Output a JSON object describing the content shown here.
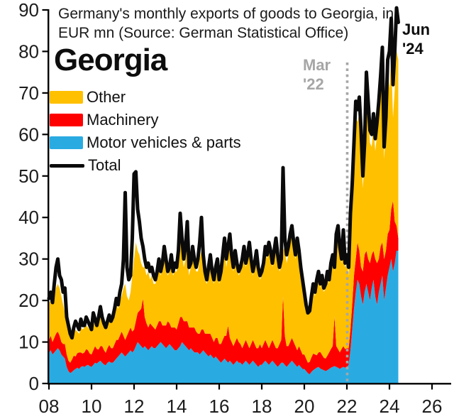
{
  "header": {
    "title_line1": "Germany's monthly exports of goods to Georgia, in",
    "title_line2": "EUR mn (Source: German Statistical Office)",
    "chart_name": "Georgia"
  },
  "legend": {
    "items": [
      {
        "label": "Other",
        "color": "#FFC000",
        "type": "box"
      },
      {
        "label": "Machinery",
        "color": "#FF0000",
        "type": "box"
      },
      {
        "label": "Motor vehicles & parts",
        "color": "#29ABE2",
        "type": "box"
      },
      {
        "label": "Total",
        "color": "#0A0A0A",
        "type": "line"
      }
    ]
  },
  "annotations": {
    "mar22": {
      "line1": "Mar",
      "line2": "'22",
      "color": "#A6A6A6"
    },
    "jun24": {
      "line1": "Jun",
      "line2": "'24",
      "color": "#0D0D0D"
    }
  },
  "chart_data": {
    "type": "area",
    "stacked": true,
    "title": "Georgia - Germany's monthly exports of goods to Georgia, EUR mn",
    "x_unit": "month",
    "x_start": "2008-01",
    "x_end": "2024-06",
    "x_tick_years": [
      2008,
      2010,
      2012,
      2014,
      2016,
      2018,
      2020,
      2022,
      2024,
      2026
    ],
    "x_tick_labels": [
      "08",
      "10",
      "12",
      "14",
      "16",
      "18",
      "20",
      "22",
      "24",
      "26"
    ],
    "y_ticks": [
      0,
      10,
      20,
      30,
      40,
      50,
      60,
      70,
      80,
      90
    ],
    "ylim": [
      0,
      90
    ],
    "grid": false,
    "legend_position": "top-left",
    "event_line": {
      "label": "Mar '22",
      "x": "2022-03",
      "style": "dotted",
      "color": "#A6A6A6"
    },
    "end_label": {
      "label": "Jun '24",
      "x": "2024-06"
    },
    "series": [
      {
        "role": "motor",
        "name": "Motor vehicles & parts",
        "color": "#29ABE2",
        "kind": "stacked-area",
        "values": [
          7.5,
          8,
          7,
          7.5,
          8,
          8.5,
          8,
          7,
          6.5,
          6,
          4,
          3,
          2.5,
          2.8,
          3.2,
          3.5,
          3.8,
          3.5,
          4,
          4.2,
          4,
          4.3,
          4.5,
          4.2,
          4,
          4.5,
          5,
          4.8,
          5.2,
          5.5,
          5,
          4.6,
          4.4,
          5,
          5.3,
          5,
          5,
          5.5,
          6,
          6.5,
          7,
          7.5,
          7,
          6.5,
          7,
          7.5,
          8,
          7.5,
          8,
          9,
          10,
          9.5,
          9,
          8.5,
          9,
          8.5,
          8,
          8.5,
          9,
          8.5,
          8.5,
          9,
          9.5,
          10,
          9.5,
          9,
          8.5,
          9,
          9.5,
          9,
          8.5,
          8,
          8,
          8.5,
          9,
          10,
          9.5,
          9,
          8.5,
          8,
          8.5,
          8,
          7.5,
          7.5,
          7.5,
          7,
          7.5,
          8,
          7.5,
          7,
          6.5,
          7,
          6.5,
          6,
          6.5,
          6,
          5.5,
          5,
          5.5,
          6,
          5.5,
          5,
          5.5,
          5,
          4.5,
          5,
          5.5,
          5,
          5,
          4.5,
          5,
          5.5,
          5,
          4.5,
          5,
          5.5,
          5,
          4.5,
          4,
          4.5,
          4.5,
          5,
          5.5,
          5,
          4.5,
          5,
          5.5,
          5,
          4.5,
          4,
          4.5,
          5,
          5,
          4.5,
          4,
          4.5,
          5,
          5.5,
          5,
          4.5,
          4,
          4.5,
          4,
          3.5,
          3.5,
          3,
          2.5,
          2.2,
          2.8,
          3.2,
          3.5,
          3.8,
          4,
          3.6,
          3.4,
          3.2,
          3,
          3.2,
          3.5,
          3.8,
          4,
          4.2,
          4,
          3.8,
          3.5,
          3.8,
          4,
          3.8,
          4,
          4.5,
          8,
          13,
          18,
          22,
          25,
          24,
          21,
          19,
          22,
          24,
          22,
          20,
          23,
          25,
          21,
          19,
          22,
          24,
          26,
          20,
          23,
          26,
          28,
          30,
          27,
          29,
          32,
          32
        ]
      },
      {
        "role": "machinery",
        "name": "Machinery",
        "color": "#FF0000",
        "kind": "stacked-area",
        "values": [
          3,
          3.5,
          3,
          3.5,
          4,
          4,
          3.5,
          3,
          3,
          3.5,
          3,
          2.5,
          2.5,
          3,
          3.5,
          3,
          3.5,
          4,
          3.5,
          3,
          3.5,
          4,
          3.5,
          3,
          3,
          3.5,
          4,
          3.5,
          3,
          3.5,
          4,
          3.5,
          3,
          3.5,
          4,
          3.5,
          3.5,
          4,
          4.5,
          4,
          4.5,
          5,
          4.5,
          4,
          4.5,
          5,
          5.5,
          5,
          5,
          6,
          7,
          8,
          9,
          12,
          7,
          6,
          5.5,
          6,
          5,
          5,
          4.5,
          5,
          5.5,
          5,
          4.5,
          5,
          5.5,
          6,
          5,
          4.5,
          5,
          5.5,
          5,
          6,
          7,
          6,
          5.5,
          6,
          6.5,
          5.5,
          5,
          5.5,
          6,
          5,
          4.5,
          5,
          5.5,
          5,
          4.5,
          5,
          5.5,
          5,
          4.5,
          4,
          4.5,
          5,
          4,
          4.5,
          5,
          5.5,
          6,
          9,
          5.5,
          5,
          4.5,
          5,
          5.5,
          5,
          4.5,
          4,
          4.5,
          5,
          4.5,
          4,
          4.5,
          5,
          4.5,
          4,
          4.5,
          5,
          4,
          4.5,
          5,
          4.5,
          4,
          4.5,
          5,
          4.5,
          4,
          4.5,
          5,
          5.5,
          16,
          7,
          5,
          4.5,
          5,
          5.5,
          5,
          4.5,
          4,
          4.5,
          4,
          3.5,
          3.5,
          3,
          2.5,
          3,
          3.5,
          4,
          3.5,
          3,
          3.5,
          4,
          3.5,
          3,
          3,
          3.5,
          4,
          4.5,
          5,
          12,
          5,
          4.5,
          4,
          4.5,
          5,
          4.5,
          4.5,
          4,
          5,
          6,
          8,
          8,
          9,
          8,
          7,
          8,
          9,
          8,
          8,
          9,
          8,
          7,
          9,
          10,
          8,
          9,
          8,
          10,
          9,
          10,
          9,
          12,
          17,
          10,
          6,
          3
        ]
      },
      {
        "role": "other",
        "name": "Other",
        "color": "#FFC000",
        "kind": "stacked-area",
        "values": [
          9,
          8.5,
          9,
          10,
          11,
          11.5,
          11.5,
          11,
          9.5,
          7.5,
          7,
          7.5,
          6,
          4.7,
          5.3,
          6.5,
          5.2,
          4.5,
          6,
          5.8,
          6,
          5.7,
          5.5,
          5.8,
          5.5,
          6,
          6,
          5.7,
          7.3,
          8,
          6.5,
          5.9,
          5.6,
          6,
          6.2,
          6.5,
          7,
          7.5,
          8.5,
          7.5,
          8.5,
          8.5,
          11.5,
          13.5,
          9.5,
          7.5,
          8.5,
          13.5,
          17,
          19,
          15,
          13.5,
          11,
          7.5,
          12,
          11.5,
          13.5,
          10.5,
          12,
          10.5,
          11,
          12,
          13,
          11,
          14,
          16,
          14,
          11,
          12.5,
          15.5,
          12.5,
          13.5,
          14,
          15.5,
          19,
          16,
          13,
          15,
          18,
          12.5,
          14.5,
          17.5,
          15.5,
          14.5,
          15,
          18,
          19,
          15,
          13,
          12,
          14,
          16,
          15,
          14,
          15,
          17,
          14.5,
          16.5,
          18.5,
          21.5,
          16.5,
          17,
          23,
          19,
          18,
          20,
          17,
          16,
          17.5,
          20.5,
          22.5,
          17.5,
          20.5,
          24.5,
          19.5,
          15.5,
          18.5,
          22.5,
          18.5,
          15.5,
          17.5,
          18.5,
          21.5,
          20.5,
          24.5,
          21.5,
          17.5,
          21.5,
          25.5,
          21.5,
          17.5,
          17.5,
          11,
          21.5,
          20,
          22,
          24,
          25,
          22,
          21,
          25,
          21,
          19,
          17,
          13,
          12,
          11.5,
          11.8,
          13.7,
          15.8,
          14,
          17.2,
          18.5,
          15.4,
          18.1,
          15.8,
          17,
          19.3,
          16.5,
          19.7,
          21,
          10.8,
          25,
          27.7,
          23.5,
          20.7,
          26,
          19.7,
          20.5,
          17.5,
          25,
          26,
          29,
          34,
          29,
          33,
          29,
          20,
          24,
          39,
          35,
          29,
          26,
          30,
          26,
          31,
          35,
          38,
          44,
          24,
          29,
          39,
          34,
          37,
          20,
          32,
          42,
          43
        ]
      },
      {
        "role": "total",
        "name": "Total",
        "color": "#0A0A0A",
        "kind": "line",
        "values": [
          20.5,
          22,
          19.5,
          24,
          28,
          30,
          26,
          25,
          22,
          23,
          16,
          14,
          12,
          11,
          13.5,
          15,
          14,
          13,
          15.5,
          14,
          14,
          16,
          15,
          14,
          13,
          17,
          15.5,
          14,
          16,
          18.5,
          16,
          14.5,
          13.5,
          15,
          16.5,
          15,
          16,
          18,
          20.5,
          19,
          22,
          24,
          30,
          46,
          28,
          25,
          26,
          35,
          50.5,
          51,
          42,
          39,
          35,
          33,
          30,
          28,
          29,
          27,
          28,
          26,
          25,
          27,
          30,
          27,
          29,
          33,
          30,
          27,
          28,
          31,
          27,
          29,
          28,
          32,
          41,
          35,
          30,
          33,
          39,
          28,
          29,
          33,
          30,
          28,
          30,
          34,
          40,
          31,
          27,
          25,
          28,
          31,
          27,
          25,
          28,
          30,
          25,
          27,
          31,
          35,
          30,
          33,
          36,
          31,
          28,
          32,
          29,
          27,
          28,
          30,
          33,
          29,
          31,
          34,
          30,
          27,
          29,
          32,
          28,
          26,
          27,
          29,
          33,
          31,
          34,
          32,
          29,
          32,
          35,
          31,
          28,
          30,
          52,
          35,
          31,
          33,
          36,
          38,
          34,
          31,
          35,
          32,
          28,
          25,
          22,
          19,
          17,
          17.5,
          21,
          24,
          22,
          25,
          27,
          24,
          26,
          23,
          24,
          27,
          25,
          29,
          31,
          28,
          36,
          38,
          33,
          30,
          37,
          29,
          31,
          28,
          41,
          48,
          58,
          68,
          66,
          69,
          61,
          50,
          58,
          75,
          68,
          61,
          60,
          65,
          59,
          63,
          68,
          74,
          81,
          57,
          64,
          78,
          80,
          88,
          72,
          80,
          90.5,
          87
        ]
      }
    ]
  }
}
